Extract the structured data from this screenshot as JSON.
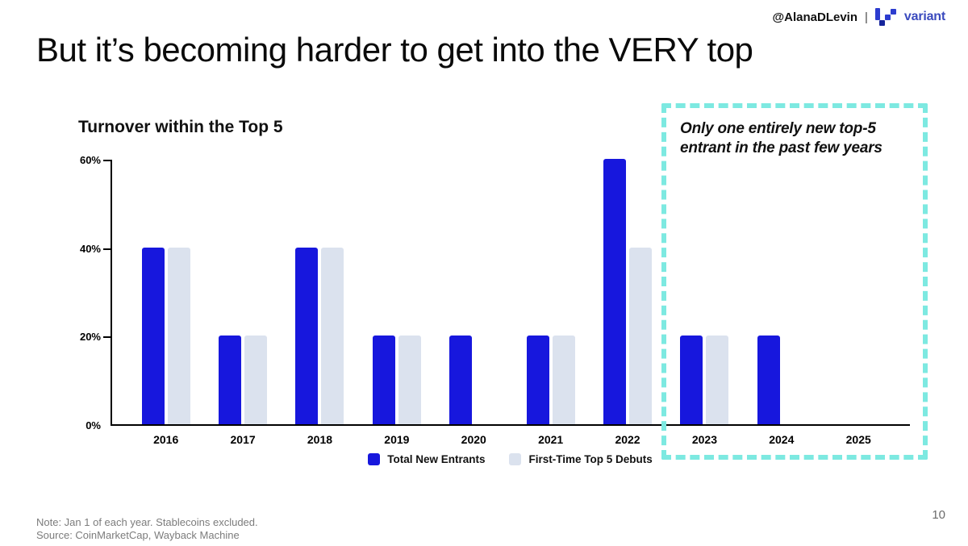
{
  "header": {
    "handle": "@AlanaDLevin",
    "separator": "|",
    "brand": "variant"
  },
  "slide": {
    "title": "But it’s becoming harder to get into the VERY top",
    "page_number": "10"
  },
  "annotation": {
    "text": "Only one entirely new top-5 entrant in the past few years"
  },
  "notes": {
    "line1": "Note: Jan 1 of each year. Stablecoins excluded.",
    "line2": "Source: CoinMarketCap, Wayback Machine"
  },
  "chart_data": {
    "type": "bar",
    "title": "Turnover within the Top 5",
    "categories": [
      "2016",
      "2017",
      "2018",
      "2019",
      "2020",
      "2021",
      "2022",
      "2023",
      "2024",
      "2025"
    ],
    "series": [
      {
        "name": "Total New Entrants",
        "color": "#1717dd",
        "values": [
          40,
          20,
          40,
          20,
          20,
          20,
          60,
          20,
          20,
          0
        ]
      },
      {
        "name": "First-Time Top 5 Debuts",
        "color": "#dbe2ee",
        "values": [
          40,
          20,
          40,
          20,
          null,
          20,
          40,
          20,
          null,
          0
        ]
      }
    ],
    "ylabel": "",
    "ylim": [
      0,
      60
    ],
    "yticks": [
      "0%",
      "20%",
      "40%",
      "60%"
    ],
    "grid": false,
    "legend_position": "bottom",
    "highlight_region": {
      "categories": [
        "2023",
        "2024",
        "2025"
      ],
      "style": "dashed-cyan-box",
      "color": "#7de9e1"
    }
  }
}
